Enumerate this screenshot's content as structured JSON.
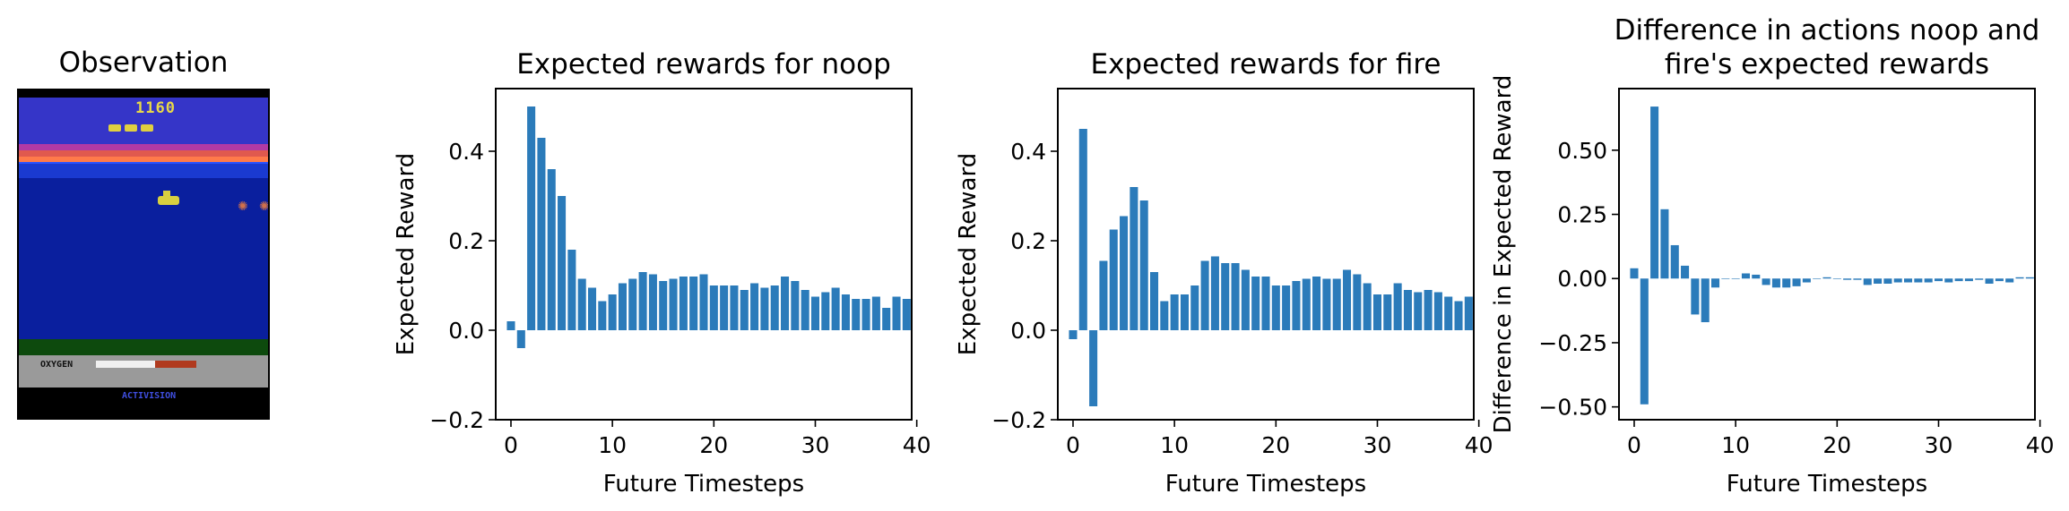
{
  "figure": {
    "observation_title": "Observation",
    "game": {
      "score": "1160",
      "oxygen_label": "OXYGEN",
      "logo": "ACTIVISION"
    }
  },
  "bar_color": "#2b7bba",
  "chart_data": [
    {
      "type": "bar",
      "title": "Expected rewards for noop",
      "xlabel": "Future Timesteps",
      "ylabel": "Expected Reward",
      "x": [
        0,
        1,
        2,
        3,
        4,
        5,
        6,
        7,
        8,
        9,
        10,
        11,
        12,
        13,
        14,
        15,
        16,
        17,
        18,
        19,
        20,
        21,
        22,
        23,
        24,
        25,
        26,
        27,
        28,
        29,
        30,
        31,
        32,
        33,
        34,
        35,
        36,
        37,
        38,
        39
      ],
      "values": [
        0.02,
        -0.04,
        0.5,
        0.43,
        0.36,
        0.3,
        0.18,
        0.115,
        0.095,
        0.065,
        0.08,
        0.105,
        0.115,
        0.13,
        0.125,
        0.11,
        0.115,
        0.12,
        0.12,
        0.125,
        0.1,
        0.1,
        0.1,
        0.09,
        0.105,
        0.095,
        0.1,
        0.12,
        0.11,
        0.09,
        0.075,
        0.085,
        0.095,
        0.08,
        0.07,
        0.07,
        0.075,
        0.05,
        0.075,
        0.07
      ],
      "xlim": [
        -1.5,
        39.5
      ],
      "ylim": [
        -0.2,
        0.54
      ],
      "xticks": [
        0,
        10,
        20,
        30,
        40
      ],
      "yticks": [
        -0.2,
        0.0,
        0.2,
        0.4
      ],
      "ytick_labels": [
        "−0.2",
        "0.0",
        "0.2",
        "0.4"
      ]
    },
    {
      "type": "bar",
      "title": "Expected rewards for fire",
      "xlabel": "Future Timesteps",
      "ylabel": "Expected Reward",
      "x": [
        0,
        1,
        2,
        3,
        4,
        5,
        6,
        7,
        8,
        9,
        10,
        11,
        12,
        13,
        14,
        15,
        16,
        17,
        18,
        19,
        20,
        21,
        22,
        23,
        24,
        25,
        26,
        27,
        28,
        29,
        30,
        31,
        32,
        33,
        34,
        35,
        36,
        37,
        38,
        39
      ],
      "values": [
        -0.02,
        0.45,
        -0.17,
        0.155,
        0.225,
        0.255,
        0.32,
        0.29,
        0.13,
        0.065,
        0.08,
        0.08,
        0.1,
        0.155,
        0.165,
        0.15,
        0.15,
        0.135,
        0.12,
        0.12,
        0.1,
        0.1,
        0.11,
        0.115,
        0.12,
        0.115,
        0.115,
        0.135,
        0.125,
        0.105,
        0.08,
        0.08,
        0.105,
        0.09,
        0.085,
        0.09,
        0.085,
        0.075,
        0.065,
        0.075
      ],
      "xlim": [
        -1.5,
        39.5
      ],
      "ylim": [
        -0.2,
        0.54
      ],
      "xticks": [
        0,
        10,
        20,
        30,
        40
      ],
      "yticks": [
        -0.2,
        0.0,
        0.2,
        0.4
      ],
      "ytick_labels": [
        "−0.2",
        "0.0",
        "0.2",
        "0.4"
      ]
    },
    {
      "type": "bar",
      "title": "Difference in actions noop and fire's expected rewards",
      "title_lines": [
        "Difference in actions noop and",
        "fire's expected rewards"
      ],
      "xlabel": "Future Timesteps",
      "ylabel": "Difference in Expected Reward",
      "x": [
        0,
        1,
        2,
        3,
        4,
        5,
        6,
        7,
        8,
        9,
        10,
        11,
        12,
        13,
        14,
        15,
        16,
        17,
        18,
        19,
        20,
        21,
        22,
        23,
        24,
        25,
        26,
        27,
        28,
        29,
        30,
        31,
        32,
        33,
        34,
        35,
        36,
        37,
        38,
        39
      ],
      "values": [
        0.04,
        -0.49,
        0.67,
        0.27,
        0.13,
        0.05,
        -0.14,
        -0.17,
        -0.035,
        0.0,
        0.0,
        0.02,
        0.015,
        -0.025,
        -0.035,
        -0.035,
        -0.03,
        -0.015,
        0.0,
        0.005,
        0.0,
        -0.005,
        -0.005,
        -0.025,
        -0.02,
        -0.02,
        -0.015,
        -0.015,
        -0.015,
        -0.015,
        -0.01,
        -0.015,
        -0.01,
        -0.01,
        -0.005,
        -0.02,
        -0.01,
        -0.015,
        0.005,
        0.005
      ],
      "xlim": [
        -1.5,
        39.5
      ],
      "ylim": [
        -0.55,
        0.74
      ],
      "xticks": [
        0,
        10,
        20,
        30,
        40
      ],
      "yticks": [
        -0.5,
        -0.25,
        0.0,
        0.25,
        0.5
      ],
      "ytick_labels": [
        "−0.50",
        "−0.25",
        "0.00",
        "0.25",
        "0.50"
      ]
    }
  ]
}
